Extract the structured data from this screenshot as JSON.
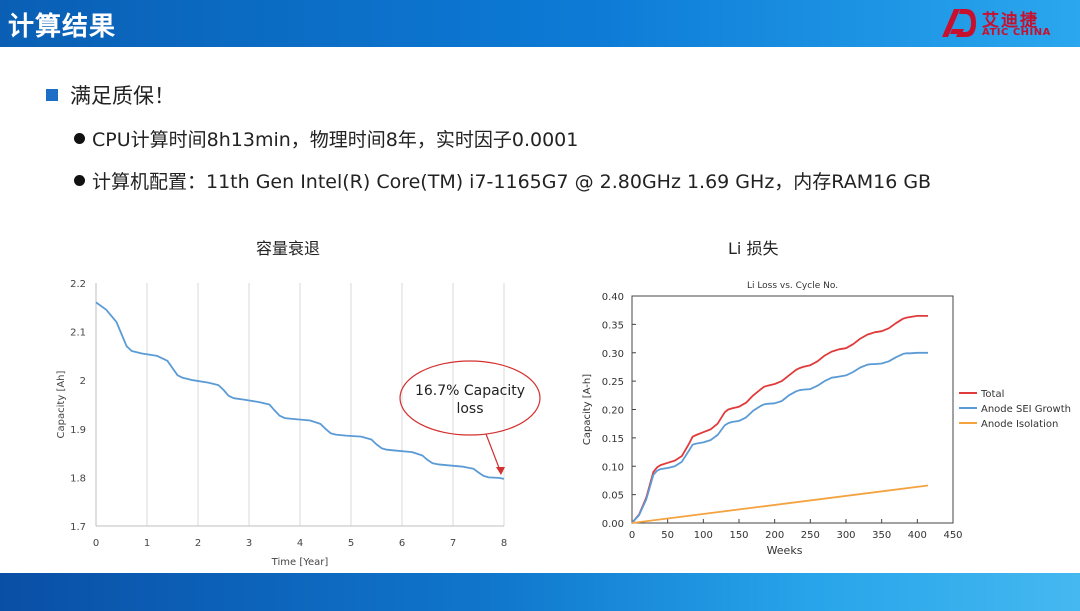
{
  "header": {
    "title": "计算结果",
    "logo": {
      "cn": "艾迪捷",
      "en": "ATIC CHINA"
    }
  },
  "content": {
    "main_bullet": "满足质保！",
    "sub_bullets": [
      "CPU计算时间8h13min，物理时间8年，实时因子0.0001",
      "计算机配置：11th Gen Intel(R) Core(TM) i7-1165G7 @ 2.80GHz 1.69 GHz，内存RAM16 GB"
    ],
    "chart_titles": {
      "left": "容量衰退",
      "right": "Li 损失"
    }
  },
  "colors": {
    "header": "#0d7bd6",
    "line_blue": "#5b9bd5",
    "total": "#e03a3a",
    "sei": "#5b9bd5",
    "isolation": "#f4a340",
    "annotation": "#d33030"
  },
  "chart_data": [
    {
      "type": "line",
      "title": "",
      "xlabel": "Time [Year]",
      "ylabel": "Capacity [Ah]",
      "xlim": [
        0,
        8
      ],
      "ylim": [
        1.7,
        2.2
      ],
      "xticks": [
        0,
        1,
        2,
        3,
        4,
        5,
        6,
        7,
        8
      ],
      "yticks": [
        1.7,
        1.8,
        1.9,
        2.0,
        2.1,
        2.2
      ],
      "ytick_labels": [
        "1.7",
        "1.8",
        "1.9",
        "2",
        "2.1",
        "2.2"
      ],
      "grid": "vertical",
      "annotation": {
        "text_line1": "16.7% Capacity",
        "text_line2": "loss",
        "x": 8,
        "y": 1.8
      },
      "series": [
        {
          "x": [
            0,
            0.2,
            0.4,
            0.5,
            0.6,
            0.7,
            0.9,
            1.2,
            1.4,
            1.5,
            1.6,
            1.7,
            1.9,
            2.2,
            2.4,
            2.5,
            2.6,
            2.7,
            2.9,
            3.2,
            3.4,
            3.5,
            3.6,
            3.7,
            3.9,
            4.2,
            4.4,
            4.5,
            4.6,
            4.7,
            4.9,
            5.2,
            5.4,
            5.5,
            5.6,
            5.7,
            5.9,
            6.2,
            6.4,
            6.5,
            6.6,
            6.7,
            6.9,
            7.2,
            7.4,
            7.5,
            7.6,
            7.7,
            7.9,
            8.0
          ],
          "y": [
            2.16,
            2.145,
            2.12,
            2.095,
            2.07,
            2.06,
            2.055,
            2.05,
            2.04,
            2.025,
            2.01,
            2.005,
            2.0,
            1.995,
            1.99,
            1.98,
            1.968,
            1.963,
            1.96,
            1.955,
            1.95,
            1.938,
            1.927,
            1.922,
            1.92,
            1.917,
            1.91,
            1.9,
            1.891,
            1.888,
            1.886,
            1.884,
            1.878,
            1.868,
            1.86,
            1.857,
            1.855,
            1.852,
            1.845,
            1.836,
            1.829,
            1.827,
            1.825,
            1.822,
            1.818,
            1.81,
            1.803,
            1.8,
            1.799,
            1.797
          ]
        }
      ]
    },
    {
      "type": "line",
      "title": "Li Loss vs. Cycle No.",
      "xlabel": "Weeks",
      "ylabel": "Capacity [A-h]",
      "xlim": [
        0,
        450
      ],
      "ylim": [
        0,
        0.4
      ],
      "xticks": [
        0,
        50,
        100,
        150,
        200,
        250,
        300,
        350,
        400,
        450
      ],
      "yticks": [
        0,
        0.05,
        0.1,
        0.15,
        0.2,
        0.25,
        0.3,
        0.35,
        0.4
      ],
      "ytick_labels": [
        "0.00",
        "0.05",
        "0.10",
        "0.15",
        "0.20",
        "0.25",
        "0.30",
        "0.35",
        "0.40"
      ],
      "grid": "none",
      "legend": "right",
      "series": [
        {
          "name": "Total",
          "color": "#e03a3a",
          "x": [
            0,
            10,
            20,
            30,
            35,
            40,
            50,
            60,
            70,
            80,
            85,
            90,
            100,
            110,
            120,
            130,
            135,
            140,
            150,
            160,
            170,
            180,
            185,
            190,
            200,
            210,
            220,
            230,
            235,
            240,
            250,
            260,
            270,
            280,
            285,
            290,
            300,
            310,
            320,
            330,
            335,
            340,
            350,
            360,
            370,
            380,
            385,
            390,
            400,
            410,
            415
          ],
          "y": [
            0,
            0.015,
            0.045,
            0.09,
            0.098,
            0.102,
            0.106,
            0.11,
            0.118,
            0.14,
            0.152,
            0.155,
            0.16,
            0.165,
            0.175,
            0.195,
            0.2,
            0.202,
            0.205,
            0.212,
            0.225,
            0.235,
            0.24,
            0.242,
            0.245,
            0.25,
            0.26,
            0.27,
            0.273,
            0.275,
            0.278,
            0.285,
            0.295,
            0.302,
            0.304,
            0.306,
            0.308,
            0.315,
            0.325,
            0.332,
            0.334,
            0.336,
            0.338,
            0.343,
            0.352,
            0.36,
            0.362,
            0.363,
            0.365,
            0.365,
            0.365
          ]
        },
        {
          "name": "Anode SEI Growth",
          "color": "#5b9bd5",
          "x": [
            0,
            10,
            20,
            30,
            35,
            40,
            50,
            60,
            70,
            80,
            85,
            90,
            100,
            110,
            120,
            130,
            135,
            140,
            150,
            160,
            170,
            180,
            185,
            190,
            200,
            210,
            220,
            230,
            235,
            240,
            250,
            260,
            270,
            280,
            285,
            290,
            300,
            310,
            320,
            330,
            335,
            340,
            350,
            360,
            370,
            380,
            385,
            390,
            400,
            410,
            415
          ],
          "y": [
            0,
            0.014,
            0.042,
            0.085,
            0.092,
            0.095,
            0.097,
            0.1,
            0.108,
            0.128,
            0.138,
            0.14,
            0.142,
            0.146,
            0.155,
            0.172,
            0.176,
            0.178,
            0.18,
            0.186,
            0.198,
            0.206,
            0.209,
            0.21,
            0.211,
            0.215,
            0.225,
            0.232,
            0.234,
            0.235,
            0.236,
            0.242,
            0.25,
            0.256,
            0.257,
            0.258,
            0.26,
            0.266,
            0.274,
            0.279,
            0.28,
            0.28,
            0.281,
            0.285,
            0.292,
            0.298,
            0.299,
            0.299,
            0.3,
            0.3,
            0.3
          ]
        },
        {
          "name": "Anode Isolation",
          "color": "#f4a340",
          "x": [
            0,
            415
          ],
          "y": [
            0,
            0.066
          ]
        }
      ]
    }
  ]
}
